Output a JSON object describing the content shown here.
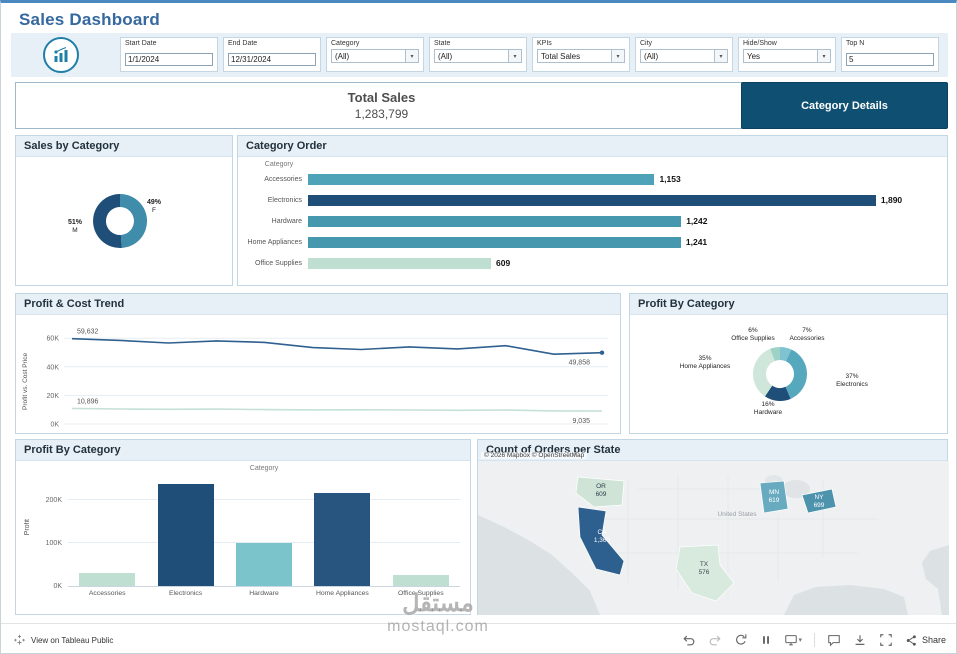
{
  "page": {
    "title": "Sales Dashboard"
  },
  "filters": [
    {
      "label": "Start Date",
      "value": "1/1/2024",
      "type": "input"
    },
    {
      "label": "End Date",
      "value": "12/31/2024",
      "type": "input"
    },
    {
      "label": "Category",
      "value": "(All)",
      "type": "select"
    },
    {
      "label": "State",
      "value": "(All)",
      "type": "select"
    },
    {
      "label": "KPIs",
      "value": "Total Sales",
      "type": "select"
    },
    {
      "label": "City",
      "value": "(All)",
      "type": "select"
    },
    {
      "label": "Hide/Show",
      "value": "Yes",
      "type": "select"
    },
    {
      "label": "Top N",
      "value": "5",
      "type": "input"
    }
  ],
  "kpi": {
    "label": "Total Sales",
    "value": "1,283,799"
  },
  "buttons": {
    "category_details": "Category Details"
  },
  "panels": {
    "sales_by_category": {
      "title": "Sales by Category"
    },
    "category_order": {
      "title": "Category Order",
      "axis_title": "Category"
    },
    "profit_cost_trend": {
      "title": "Profit & Cost Trend",
      "y_axis": "Profit vs. Cost Price"
    },
    "profit_by_category_donut": {
      "title": "Profit By Category"
    },
    "profit_by_category_bar": {
      "title": "Profit By Category",
      "x_axis": "Category",
      "y_axis": "Profit"
    },
    "orders_map": {
      "title": "Count of Orders per State",
      "country_label": "United States",
      "attribution": "© 2026 Mapbox © OpenStreetMap"
    }
  },
  "chart_data": [
    {
      "id": "sales_by_category_donut",
      "type": "pie",
      "title": "Sales by Category",
      "slices": [
        {
          "label": "F",
          "pct": "49%",
          "value": 49,
          "color": "#3f8cab"
        },
        {
          "label": "M",
          "pct": "51%",
          "value": 51,
          "color": "#1f4e79"
        }
      ]
    },
    {
      "id": "category_order",
      "type": "bar",
      "orientation": "horizontal",
      "title": "Category Order",
      "axis_label": "Category",
      "categories": [
        "Accessories",
        "Electronics",
        "Hardware",
        "Home Appliances",
        "Office Supplies"
      ],
      "values": [
        1153,
        1890,
        1242,
        1241,
        609
      ],
      "value_labels": [
        "1,153",
        "1,890",
        "1,242",
        "1,241",
        "609"
      ],
      "colors": [
        "#4fa3b8",
        "#1f4e79",
        "#4598ae",
        "#4598ae",
        "#bfdfd2"
      ],
      "xlim": [
        0,
        2100
      ]
    },
    {
      "id": "profit_cost_trend",
      "type": "line",
      "title": "Profit & Cost Trend",
      "ylabel": "Profit vs. Cost Price",
      "yticks": [
        "0K",
        "20K",
        "40K",
        "60K"
      ],
      "ytick_values": [
        0,
        20000,
        40000,
        60000
      ],
      "ylim": [
        0,
        65000
      ],
      "series": [
        {
          "name": "Profit",
          "color": "#2f608f",
          "values": [
            59632,
            58400,
            56600,
            58100,
            57000,
            53400,
            52100,
            53900,
            52500,
            54700,
            48800,
            49858
          ],
          "first_label": "59,632",
          "last_label": "49,858"
        },
        {
          "name": "Cost Price",
          "color": "#c5e1d5",
          "values": [
            10896,
            10500,
            10250,
            10400,
            10050,
            9850,
            9950,
            9750,
            9600,
            9800,
            9150,
            9035
          ],
          "first_label": "10,896",
          "last_label": "9,035"
        }
      ]
    },
    {
      "id": "profit_by_category_donut",
      "type": "pie",
      "title": "Profit By Category",
      "slices": [
        {
          "label": "Accessories",
          "pct": "7%",
          "value": 7,
          "color": "#7fc3d2"
        },
        {
          "label": "Electronics",
          "pct": "37%",
          "value": 37,
          "color": "#56a8bd"
        },
        {
          "label": "Hardware",
          "pct": "16%",
          "value": 16,
          "color": "#1f4e79"
        },
        {
          "label": "Home Appliances",
          "pct": "35%",
          "value": 35,
          "color": "#cfe6da"
        },
        {
          "label": "Office Supplies",
          "pct": "6%",
          "value": 6,
          "color": "#9dd2c6"
        }
      ]
    },
    {
      "id": "profit_by_category_bar",
      "type": "bar",
      "orientation": "vertical",
      "title": "Profit By Category",
      "xlabel": "Category",
      "ylabel": "Profit",
      "categories": [
        "Accessories",
        "Electronics",
        "Hardware",
        "Home Appliances",
        "Office Supplies"
      ],
      "values": [
        30000,
        235000,
        100000,
        215000,
        25000
      ],
      "colors": [
        "#bfdfd2",
        "#1f4e79",
        "#7cc4cc",
        "#27557f",
        "#bfdfd2"
      ],
      "yticks": [
        "0K",
        "100K",
        "200K"
      ],
      "ytick_values": [
        0,
        100000,
        200000
      ],
      "ylim": [
        0,
        250000
      ]
    },
    {
      "id": "orders_by_state_map",
      "type": "map",
      "title": "Count of Orders per State",
      "states": [
        {
          "abbr": "OR",
          "value": "609",
          "fill": "#cfe3d6",
          "text": "#2d3e49"
        },
        {
          "abbr": "CA",
          "value": "1,360",
          "fill": "#2d5f8f",
          "text": "#ffffff"
        },
        {
          "abbr": "MN",
          "value": "619",
          "fill": "#68abc1",
          "text": "#ffffff"
        },
        {
          "abbr": "NY",
          "value": "699",
          "fill": "#4d93ad",
          "text": "#ffffff"
        },
        {
          "abbr": "TX",
          "value": "576",
          "fill": "#d8e9dd",
          "text": "#3a4a52"
        }
      ]
    }
  ],
  "footer": {
    "view_label": "View on Tableau Public",
    "share_label": "Share"
  },
  "watermark": {
    "line1": "مستقل",
    "line2": "mostaql.com"
  }
}
